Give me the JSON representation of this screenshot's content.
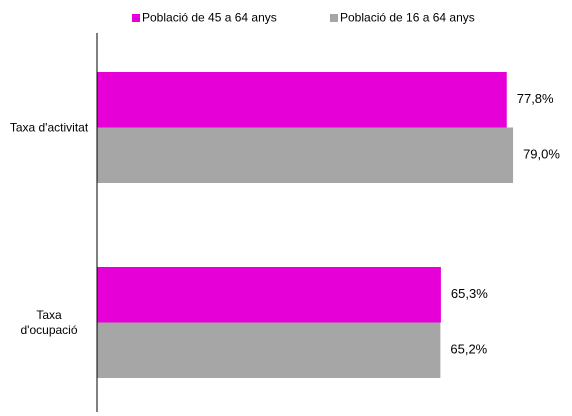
{
  "chart_data": {
    "type": "bar",
    "orientation": "horizontal",
    "categories": [
      "Taxa d'activitat",
      "Taxa d'ocupació"
    ],
    "series": [
      {
        "name": "Població de 45 a 64 anys",
        "color": "#e600d7",
        "values": [
          77.8,
          65.3
        ],
        "value_labels": [
          "77,8%",
          "65,3%"
        ]
      },
      {
        "name": "Població de 16 a 64 anys",
        "color": "#a6a6a6",
        "values": [
          79.0,
          65.2
        ],
        "value_labels": [
          "79,0%",
          "65,2%"
        ]
      }
    ],
    "xlim": [
      0,
      90
    ],
    "legend": "top"
  }
}
